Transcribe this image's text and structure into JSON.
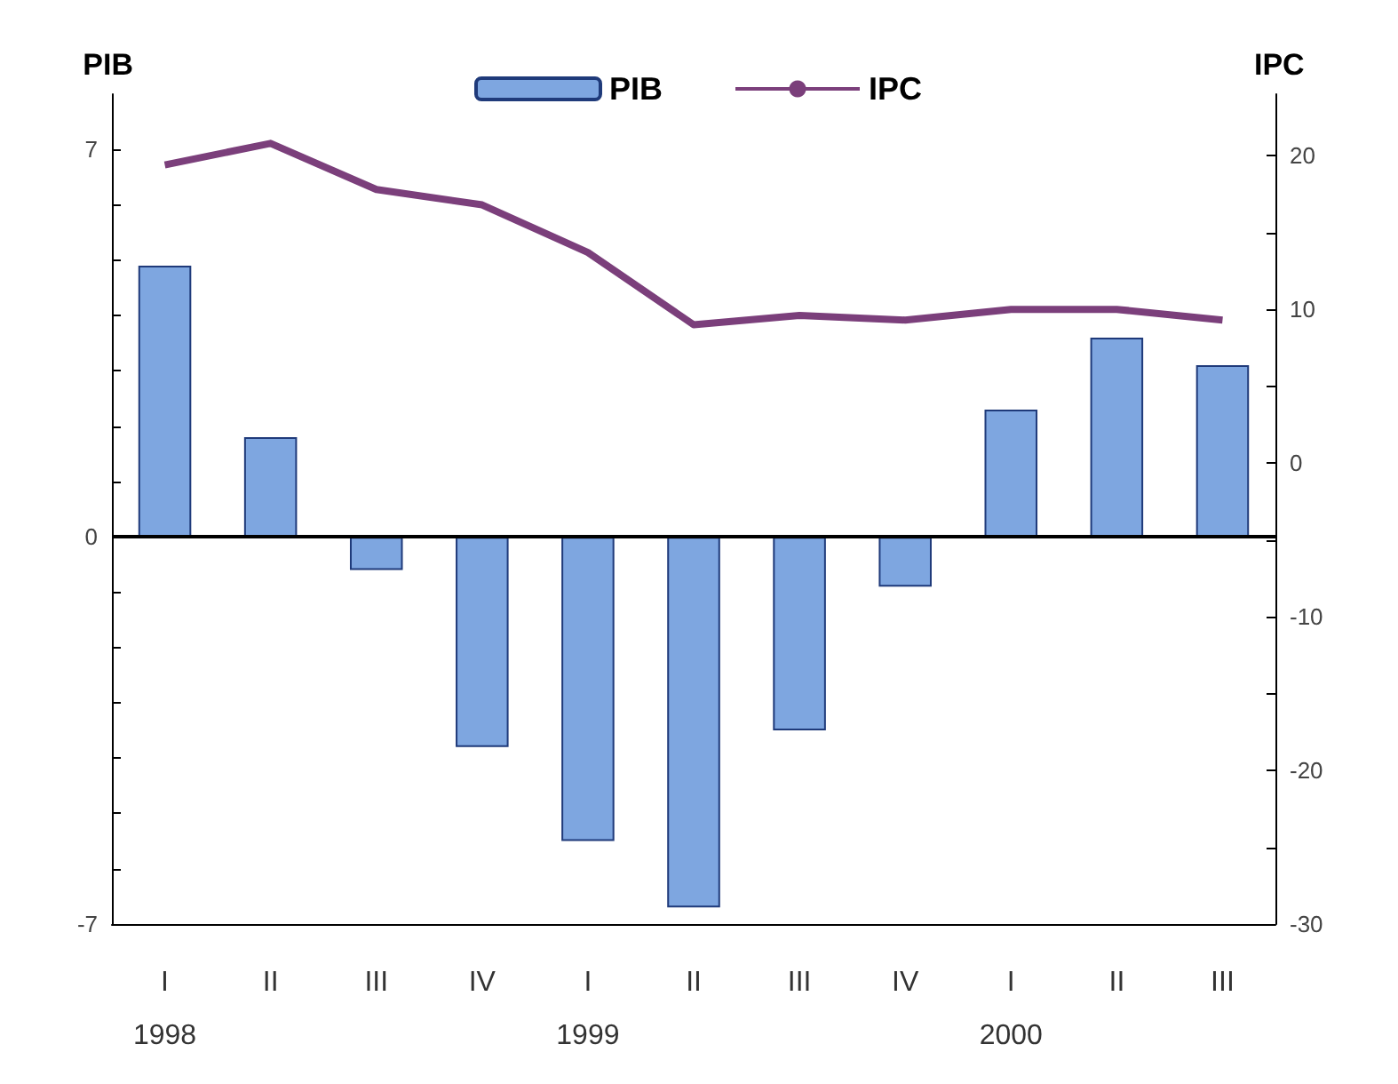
{
  "chart_data": {
    "type": "bar",
    "ylabel": "PIB",
    "y2label": "IPC",
    "categories": [
      "I\n1998",
      "II",
      "III",
      "IV",
      "I\n1999",
      "II",
      "III",
      "IV",
      "I\n2000",
      "II",
      "III"
    ],
    "series": [
      {
        "name": "PIB",
        "color": "#7ea6e0",
        "values": [
          4.9,
          1.8,
          -0.6,
          -3.8,
          -5.5,
          -6.7,
          -3.5,
          -0.9,
          2.3,
          3.6,
          3.1
        ]
      },
      {
        "name": "IPC",
        "type": "line",
        "axis": "y2",
        "color": "#7b3f7b",
        "values": [
          19.4,
          20.8,
          17.8,
          16.8,
          13.7,
          9.0,
          9.6,
          9.3,
          10.0,
          10.0,
          9.3
        ]
      }
    ],
    "ylim": [
      -7,
      8
    ],
    "yticks": [
      -7,
      {
        "value": -6,
        "label": null
      },
      {
        "value": -5,
        "label": null
      },
      {
        "value": -4,
        "label": null
      },
      {
        "value": -3,
        "label": null
      },
      {
        "value": -2,
        "label": null
      },
      {
        "value": -1,
        "label": null
      },
      0,
      {
        "value": 1,
        "label": null
      },
      {
        "value": 2,
        "label": null
      },
      {
        "value": 3,
        "label": null
      },
      {
        "value": 4,
        "label": null
      },
      {
        "value": 5,
        "label": null
      },
      {
        "value": 6,
        "label": null
      },
      7
    ],
    "y2lim": [
      -30,
      24
    ],
    "y2ticks": [
      -30,
      {
        "value": -25,
        "label": null
      },
      -20,
      {
        "value": -15,
        "label": null
      },
      -10,
      {
        "value": -5,
        "label": null
      },
      0,
      {
        "value": 5,
        "label": null
      },
      10,
      {
        "value": 15,
        "label": null
      },
      20
    ],
    "ref_lines": [
      {
        "axis": "y",
        "value": 0,
        "color": "#000000"
      }
    ],
    "legend": "top",
    "grid": false,
    "marker": "none"
  }
}
